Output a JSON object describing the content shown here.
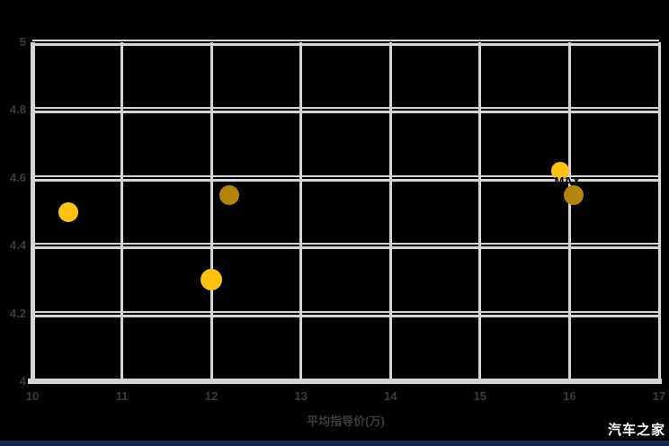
{
  "watermark": {
    "text": "汽车之家",
    "color": "#ffffff"
  },
  "bottom_bar": {
    "color": "#17254f"
  },
  "chart_data": {
    "type": "scatter",
    "title": "",
    "xlabel": "平均指导价(万)",
    "ylabel": "",
    "xlim": [
      10,
      17
    ],
    "ylim": [
      4,
      5
    ],
    "xticks": [
      "10",
      "11",
      "12",
      "13",
      "14",
      "15",
      "16",
      "17"
    ],
    "yticks": [
      "5",
      "4.8",
      "4.6",
      "4.4",
      "4.2",
      "4"
    ],
    "grid": true,
    "legend": "none",
    "background_color": "#000000",
    "grid_color": "#d4d4d4",
    "tick_label_color": "#3c3c3c",
    "point_colors": {
      "bright": "#ffc20e",
      "dark": "#b2850d"
    },
    "points": [
      {
        "x": 10.4,
        "y": 4.5,
        "color": "#ffc20e",
        "radius_px": 11,
        "label": ""
      },
      {
        "x": 12.0,
        "y": 4.3,
        "color": "#ffc20e",
        "radius_px": 12,
        "label": ""
      },
      {
        "x": 12.2,
        "y": 4.55,
        "color": "#b2850d",
        "radius_px": 11,
        "label": ""
      },
      {
        "x": 15.9,
        "y": 4.62,
        "color": "#ffc20e",
        "radius_px": 10,
        "label": "MAX"
      },
      {
        "x": 16.05,
        "y": 4.55,
        "color": "#b2850d",
        "radius_px": 11,
        "label": ""
      }
    ]
  }
}
